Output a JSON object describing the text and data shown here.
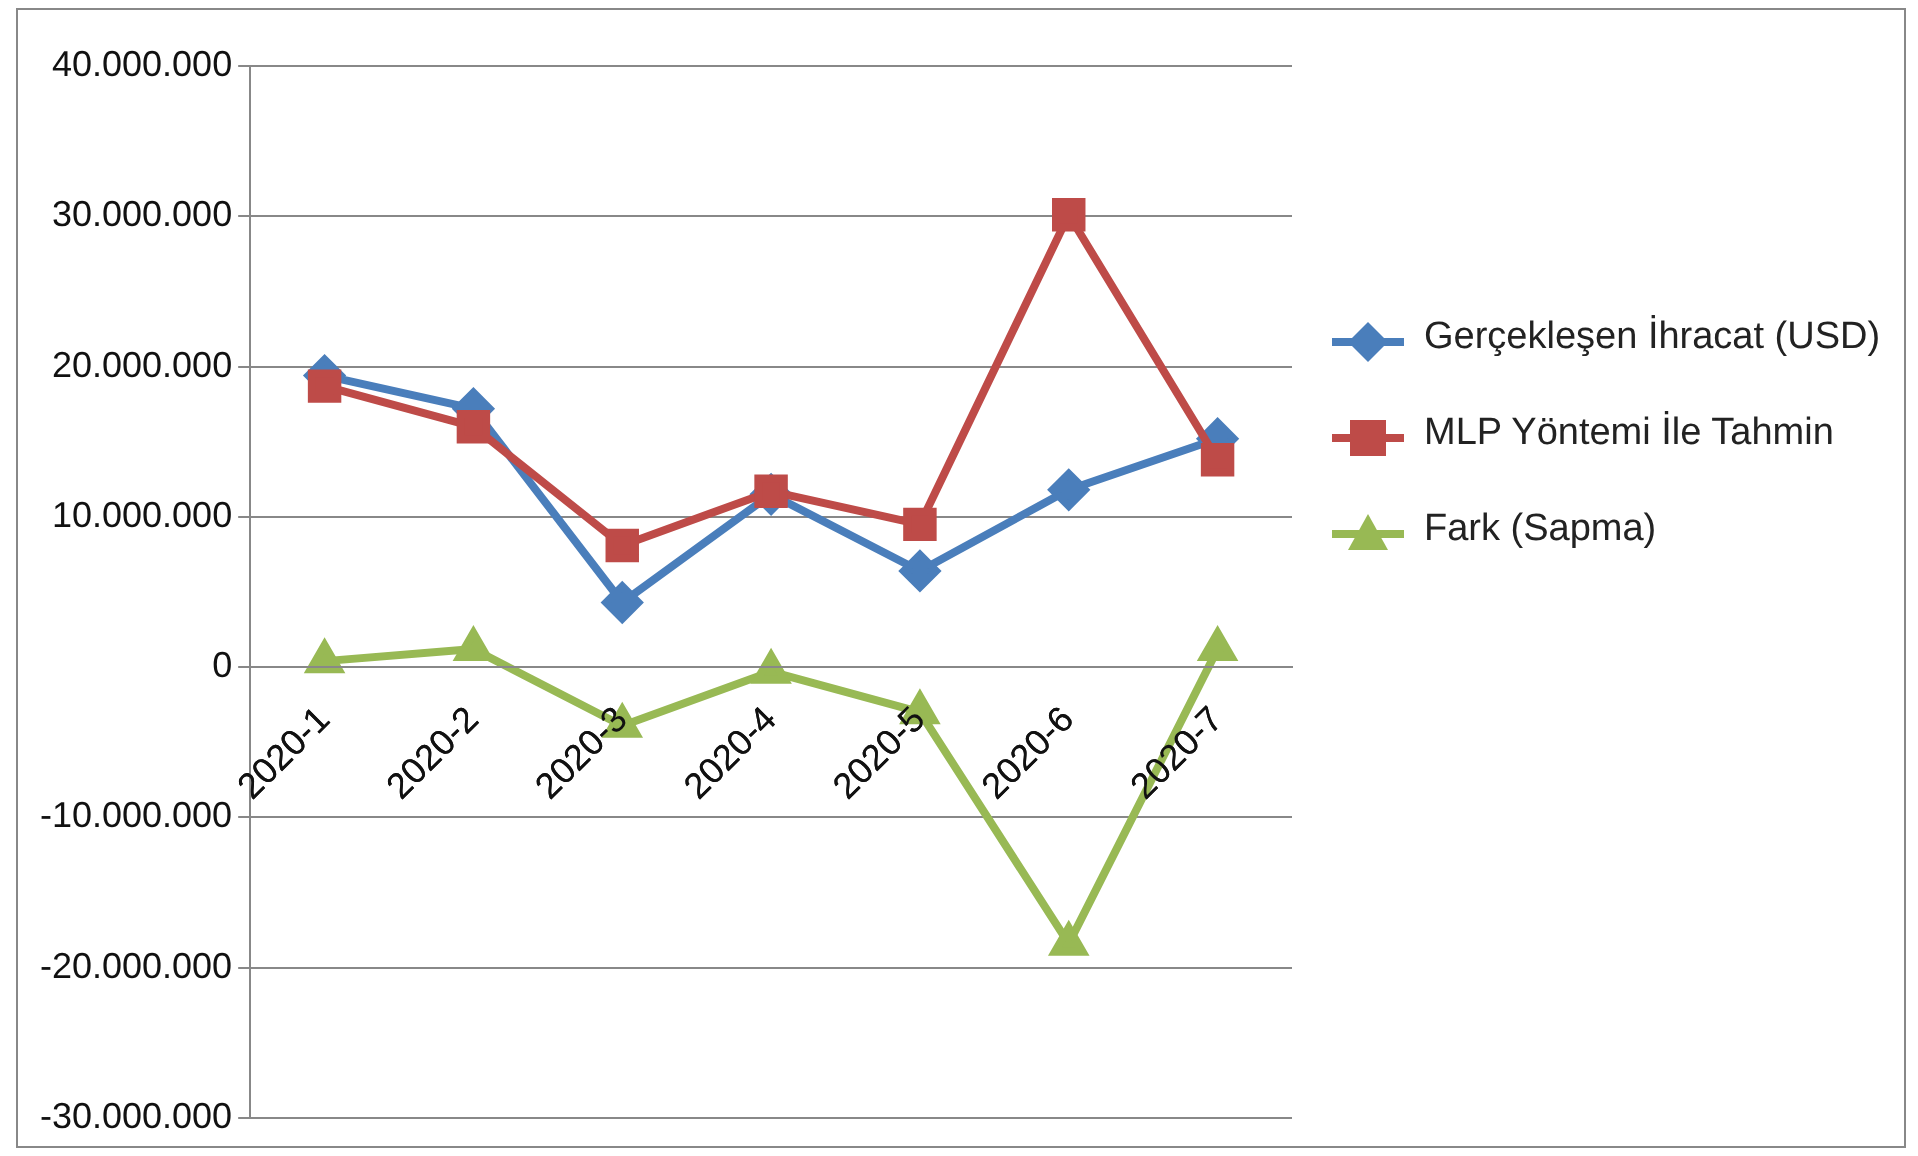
{
  "chart_data": {
    "type": "line",
    "categories": [
      "2020-1",
      "2020-2",
      "2020-3",
      "2020-4",
      "2020-5",
      "2020-6",
      "2020-7"
    ],
    "series": [
      {
        "name": "Gerçekleşen İhracat (USD)",
        "color": "#4a7ebb",
        "marker": "diamond",
        "values": [
          19400000,
          17200000,
          4300000,
          11500000,
          6400000,
          11800000,
          15200000
        ]
      },
      {
        "name": "MLP Yöntemi İle Tahmin",
        "color": "#be4b48",
        "marker": "square",
        "values": [
          18700000,
          16000000,
          8100000,
          11700000,
          9500000,
          30100000,
          13800000
        ]
      },
      {
        "name": "Fark (Sapma)",
        "color": "#98b954",
        "marker": "triangle",
        "values": [
          400000,
          1200000,
          -3900000,
          -300000,
          -3000000,
          -18400000,
          1200000
        ]
      }
    ],
    "ylim": [
      -30000000,
      40000000
    ],
    "yticks": [
      {
        "value": -30000000,
        "label": "-30.000.000"
      },
      {
        "value": -20000000,
        "label": "-20.000.000"
      },
      {
        "value": -10000000,
        "label": "-10.000.000"
      },
      {
        "value": 0,
        "label": "0"
      },
      {
        "value": 10000000,
        "label": "10.000.000"
      },
      {
        "value": 20000000,
        "label": "20.000.000"
      },
      {
        "value": 30000000,
        "label": "30.000.000"
      },
      {
        "value": 40000000,
        "label": "40.000.000"
      }
    ],
    "grid": "y",
    "legend": "right",
    "line_style": "solid"
  }
}
